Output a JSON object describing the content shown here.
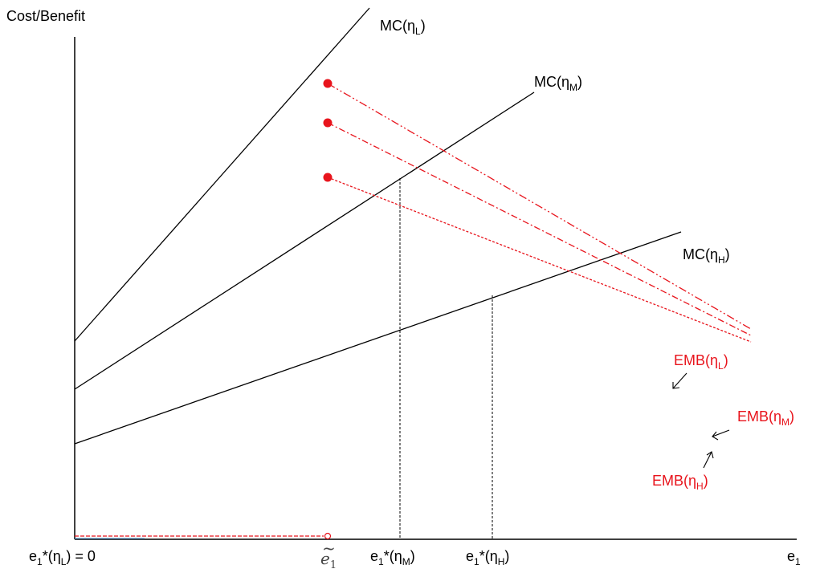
{
  "axis": {
    "y_label": "Cost/Benefit",
    "x_label": "e",
    "x_sub": "1"
  },
  "mc": [
    {
      "label": "MC(η",
      "sub": "L",
      "close": ")"
    },
    {
      "label": "MC(η",
      "sub": "M",
      "close": ")"
    },
    {
      "label": "MC(η",
      "sub": "H",
      "close": ")"
    }
  ],
  "emb": [
    {
      "label": "EMB(η",
      "sub": "L",
      "close": ")"
    },
    {
      "label": "EMB(η",
      "sub": "M",
      "close": ")"
    },
    {
      "label": "EMB(η",
      "sub": "H",
      "close": ")"
    }
  ],
  "ticks": {
    "zero": {
      "pre": "e",
      "sub": "1",
      "mid": "*(η",
      "sub2": "L",
      "post": ") = 0"
    },
    "etilde": {
      "base": "e",
      "sub": "1",
      "accent": "~"
    },
    "m": {
      "pre": "e",
      "sub": "1",
      "mid": "*(η",
      "sub2": "M",
      "post": ")"
    },
    "h": {
      "pre": "e",
      "sub": "1",
      "mid": "*(η",
      "sub2": "H",
      "post": ")"
    }
  },
  "colors": {
    "axis": "#000000",
    "emb": "#e8141c",
    "guide": "#000000"
  }
}
